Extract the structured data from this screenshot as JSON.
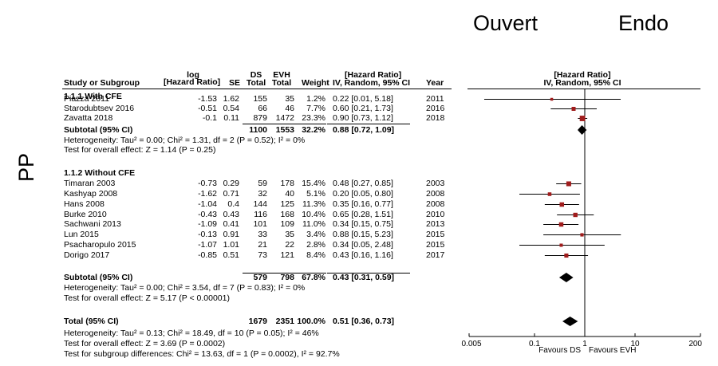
{
  "labels": {
    "open": "Ouvert",
    "endo": "Endo",
    "pp": "PP"
  },
  "header": {
    "study": "Study or Subgroup",
    "log_top": "log",
    "log_bottom": "[Hazard Ratio]",
    "se": "SE",
    "ds_top": "DS",
    "ds_bottom": "Total",
    "evh_top": "EVH",
    "evh_bottom": "Total",
    "weight": "Weight",
    "hr_top": "[Hazard Ratio]",
    "hr_bottom": "IV, Random, 95% CI",
    "year": "Year",
    "plot_top": "[Hazard Ratio]",
    "plot_bottom": "IV, Random, 95% CI"
  },
  "groups": [
    {
      "title": "1.1.1 With CFE",
      "studies": [
        {
          "name": "Piazza 2011",
          "log": "-1.53",
          "se": "1.62",
          "ds": "155",
          "evh": "35",
          "weight": "1.2%",
          "ci_text": "0.22 [0.01, 5.18]",
          "year": "2011",
          "hr": 0.22,
          "lo": 0.01,
          "hi": 5.18
        },
        {
          "name": "Starodubtsev 2016",
          "log": "-0.51",
          "se": "0.54",
          "ds": "66",
          "evh": "46",
          "weight": "7.7%",
          "ci_text": "0.60 [0.21, 1.73]",
          "year": "2016",
          "hr": 0.6,
          "lo": 0.21,
          "hi": 1.73
        },
        {
          "name": "Zavatta 2018",
          "log": "-0.1",
          "se": "0.11",
          "ds": "879",
          "evh": "1472",
          "weight": "23.3%",
          "ci_text": "0.90 [0.73, 1.12]",
          "year": "2018",
          "hr": 0.9,
          "lo": 0.73,
          "hi": 1.12
        }
      ],
      "subtotal": {
        "label": "Subtotal (95% CI)",
        "ds": "1100",
        "evh": "1553",
        "weight": "32.2%",
        "ci_text": "0.88 [0.72, 1.09]",
        "hr": 0.88,
        "lo": 0.72,
        "hi": 1.09
      },
      "heterogeneity": "Heterogeneity: Tau² = 0.00; Chi² = 1.31, df = 2 (P = 0.52); I² = 0%",
      "overall": "Test for overall effect: Z = 1.14 (P = 0.25)"
    },
    {
      "title": "1.1.2 Without CFE",
      "studies": [
        {
          "name": "Timaran 2003",
          "log": "-0.73",
          "se": "0.29",
          "ds": "59",
          "evh": "178",
          "weight": "15.4%",
          "ci_text": "0.48 [0.27, 0.85]",
          "year": "2003",
          "hr": 0.48,
          "lo": 0.27,
          "hi": 0.85
        },
        {
          "name": "Kashyap 2008",
          "log": "-1.62",
          "se": "0.71",
          "ds": "32",
          "evh": "40",
          "weight": "5.1%",
          "ci_text": "0.20 [0.05, 0.80]",
          "year": "2008",
          "hr": 0.2,
          "lo": 0.05,
          "hi": 0.8
        },
        {
          "name": "Hans 2008",
          "log": "-1.04",
          "se": "0.4",
          "ds": "144",
          "evh": "125",
          "weight": "11.3%",
          "ci_text": "0.35 [0.16, 0.77]",
          "year": "2008",
          "hr": 0.35,
          "lo": 0.16,
          "hi": 0.77
        },
        {
          "name": "Burke 2010",
          "log": "-0.43",
          "se": "0.43",
          "ds": "116",
          "evh": "168",
          "weight": "10.4%",
          "ci_text": "0.65 [0.28, 1.51]",
          "year": "2010",
          "hr": 0.65,
          "lo": 0.28,
          "hi": 1.51
        },
        {
          "name": "Sachwani 2013",
          "log": "-1.09",
          "se": "0.41",
          "ds": "101",
          "evh": "109",
          "weight": "11.0%",
          "ci_text": "0.34 [0.15, 0.75]",
          "year": "2013",
          "hr": 0.34,
          "lo": 0.15,
          "hi": 0.75
        },
        {
          "name": "Lun 2015",
          "log": "-0.13",
          "se": "0.91",
          "ds": "33",
          "evh": "35",
          "weight": "3.4%",
          "ci_text": "0.88 [0.15, 5.23]",
          "year": "2015",
          "hr": 0.88,
          "lo": 0.15,
          "hi": 5.23
        },
        {
          "name": "Psacharopulo 2015",
          "log": "-1.07",
          "se": "1.01",
          "ds": "21",
          "evh": "22",
          "weight": "2.8%",
          "ci_text": "0.34 [0.05, 2.48]",
          "year": "2015",
          "hr": 0.34,
          "lo": 0.05,
          "hi": 2.48
        },
        {
          "name": "Dorigo 2017",
          "log": "-0.85",
          "se": "0.51",
          "ds": "73",
          "evh": "121",
          "weight": "8.4%",
          "ci_text": "0.43 [0.16, 1.16]",
          "year": "2017",
          "hr": 0.43,
          "lo": 0.16,
          "hi": 1.16
        }
      ],
      "subtotal": {
        "label": "Subtotal (95% CI)",
        "ds": "579",
        "evh": "798",
        "weight": "67.8%",
        "ci_text": "0.43 [0.31, 0.59]",
        "hr": 0.43,
        "lo": 0.31,
        "hi": 0.59
      },
      "heterogeneity": "Heterogeneity: Tau² = 0.00; Chi² = 3.54, df = 7 (P = 0.83); I² = 0%",
      "overall": "Test for overall effect: Z = 5.17 (P < 0.00001)"
    }
  ],
  "total": {
    "label": "Total (95% CI)",
    "ds": "1679",
    "evh": "2351",
    "weight": "100.0%",
    "ci_text": "0.51 [0.36, 0.73]",
    "hr": 0.51,
    "lo": 0.36,
    "hi": 0.73
  },
  "footer": {
    "heterogeneity": "Heterogeneity: Tau² = 0.13; Chi² = 18.49, df = 10 (P = 0.05); I² = 46%",
    "overall": "Test for overall effect: Z = 3.69 (P = 0.0002)",
    "subgroup": "Test for subgroup differences: Chi² = 13.63, df = 1 (P = 0.0002), I² = 92.7%"
  },
  "chart_data": {
    "type": "forest",
    "scale": "log",
    "xlim": [
      0.005,
      200
    ],
    "ticks": [
      0.005,
      0.1,
      1,
      10,
      200
    ],
    "tick_labels": [
      "0.005",
      "0.1",
      "1",
      "10",
      "200"
    ],
    "favours_left": "Favours DS",
    "favours_right": "Favours EVH",
    "marker_color": "#a01c1c"
  }
}
